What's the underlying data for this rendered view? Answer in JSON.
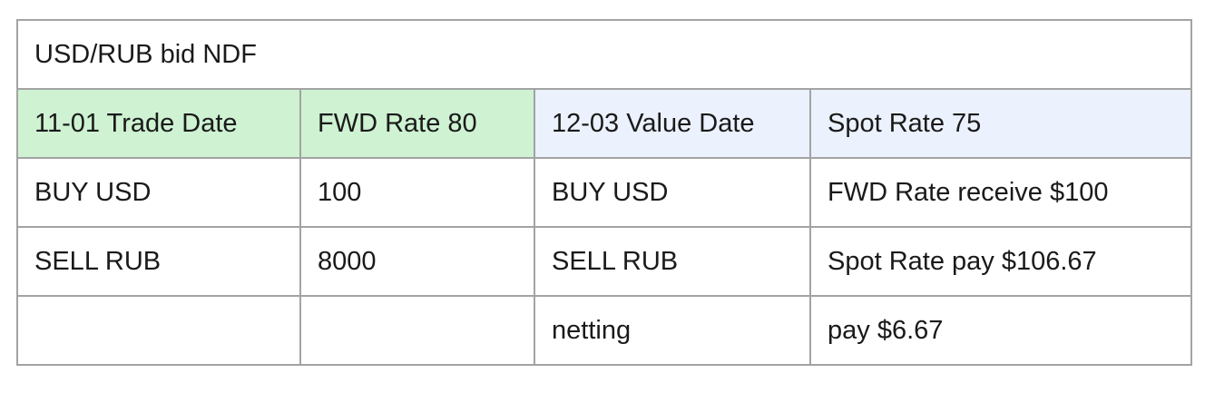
{
  "title": "USD/RUB bid NDF",
  "colors": {
    "trade_header_bg": "#cef2d2",
    "value_header_bg": "#ebf1fd",
    "border": "#a3a3a3"
  },
  "header": [
    "11-01 Trade Date",
    "FWD Rate 80",
    "12-03 Value Date",
    "Spot Rate 75"
  ],
  "rows": [
    [
      "BUY USD",
      "100",
      "BUY USD",
      "FWD Rate receive $100"
    ],
    [
      "SELL RUB",
      "8000",
      "SELL RUB",
      "Spot Rate pay $106.67"
    ],
    [
      "",
      "",
      "netting",
      "pay $6.67"
    ]
  ]
}
